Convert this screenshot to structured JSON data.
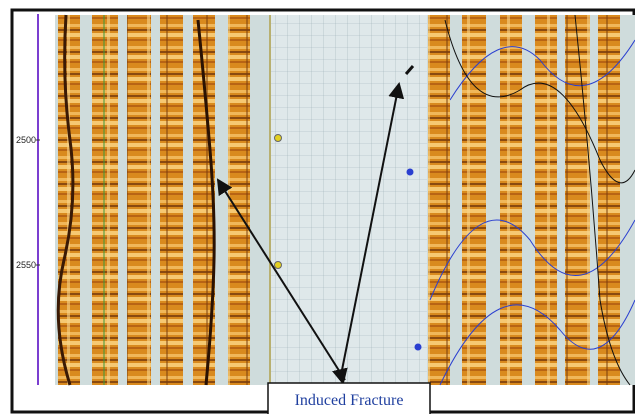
{
  "depth_labels": [
    "2500",
    "2550"
  ],
  "annotation": "Induced Fracture"
}
